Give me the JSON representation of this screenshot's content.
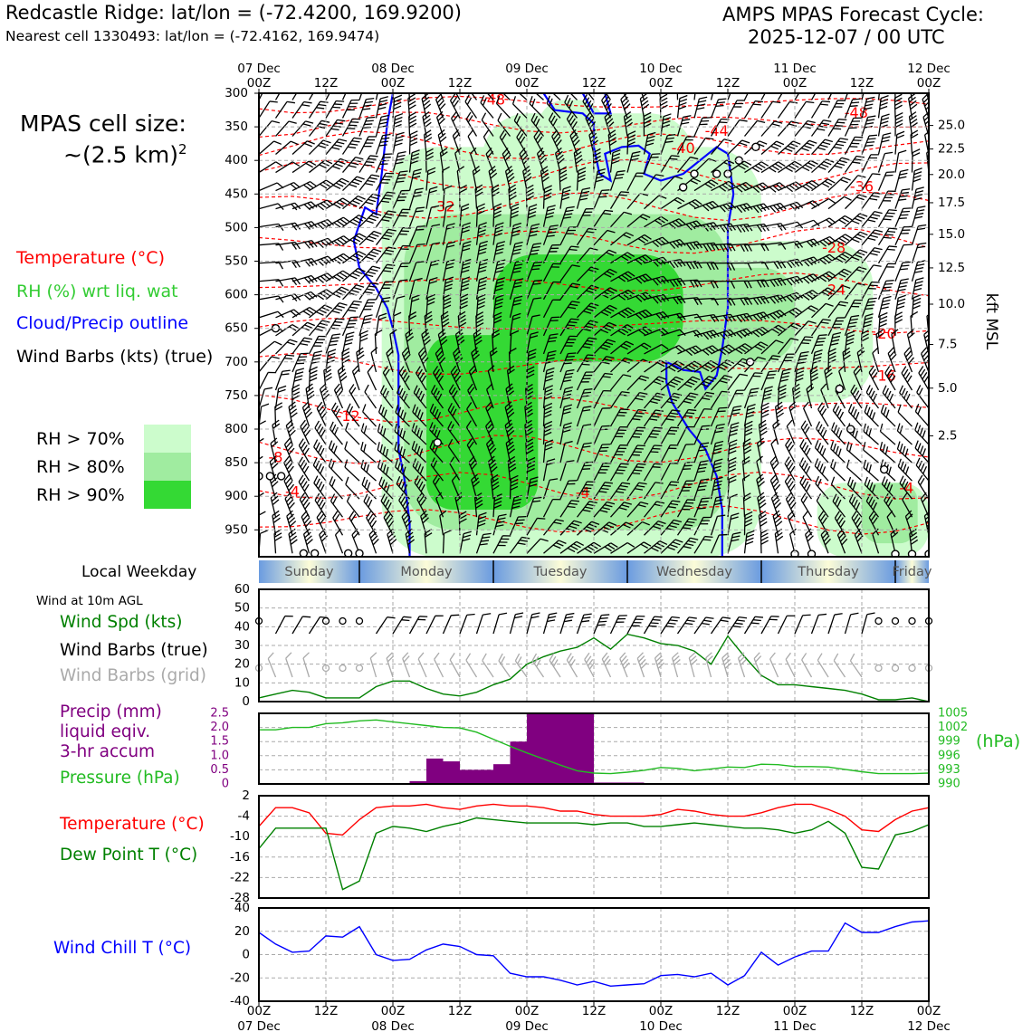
{
  "header": {
    "station": "Redcastle Ridge: lat/lon = (-72.4200, 169.9200)",
    "nearest_cell": "Nearest cell 1330493: lat/lon = (-72.4162, 169.9474)",
    "cycle_line1": "AMPS MPAS Forecast Cycle:",
    "cycle_line2": "2025-12-07 / 00 UTC"
  },
  "legend": {
    "cell_size_label": "MPAS cell size:",
    "cell_size_value": "~(2.5 km)",
    "cell_size_exp": "2",
    "temperature": "Temperature (°C)",
    "rh": "RH (%) wrt liq. wat",
    "cloud": "Cloud/Precip outline",
    "wind_barbs": "Wind Barbs (kts) (true)",
    "rh_levels": [
      {
        "label": "RH > 70%",
        "color": "#ccfccc"
      },
      {
        "label": "RH > 80%",
        "color": "#a0eca0"
      },
      {
        "label": "RH > 90%",
        "color": "#34d934"
      }
    ]
  },
  "colors": {
    "temperature": "#ff0000",
    "rh_text": "#33cc33",
    "cloud": "#0000ff",
    "wind_speed": "#008000",
    "grid_barbs": "#aaaaaa",
    "precip": "#800080",
    "pressure": "#22bb22",
    "dewpoint": "#008000",
    "wind_chill": "#0000ff",
    "weekday_light": "#fcfcd8",
    "weekday_dark": "#6a9be0"
  },
  "weekday": {
    "title": "Local Weekday",
    "days": [
      "Sunday",
      "Monday",
      "Tuesday",
      "Wednesday",
      "Thursday",
      "Friday"
    ]
  },
  "panels": {
    "wind10m_title": "Wind at 10m AGL",
    "wind_spd_label": "Wind Spd (kts)",
    "wind_barbs_true": "Wind Barbs (true)",
    "wind_barbs_grid": "Wind Barbs (grid)",
    "precip_line1": "Precip (mm)",
    "precip_line2": "liquid eqiv.",
    "precip_line3": "3-hr accum",
    "pressure_label": "Pressure (hPa)",
    "pressure_unit": "(hPa)",
    "temp_label": "Temperature (°C)",
    "dew_label": "Dew Point T (°C)",
    "windchill_label": "Wind Chill T (°C)",
    "kft_label": "kft MSL"
  },
  "chart_data": [
    {
      "type": "heatmap",
      "panel": "cross_section",
      "x_top_labels": [
        "07 Dec\n00Z",
        "12Z",
        "08 Dec\n00Z",
        "12Z",
        "09 Dec\n00Z",
        "12Z",
        "10 Dec\n00Z",
        "12Z",
        "11 Dec\n00Z",
        "12Z",
        "12 Dec\n00Z"
      ],
      "x_hours": [
        0,
        12,
        24,
        36,
        48,
        60,
        72,
        84,
        96,
        108,
        120
      ],
      "y_pressure_ticks": [
        300,
        350,
        400,
        450,
        500,
        550,
        600,
        650,
        700,
        750,
        800,
        850,
        900,
        950
      ],
      "ylim_hpa": [
        990,
        300
      ],
      "y_kft_ticks": [
        {
          "label": "25.0",
          "p": 348
        },
        {
          "label": "22.5",
          "p": 383
        },
        {
          "label": "20.0",
          "p": 421
        },
        {
          "label": "17.5",
          "p": 463
        },
        {
          "label": "15.0",
          "p": 510
        },
        {
          "label": "12.5",
          "p": 560
        },
        {
          "label": "10.0",
          "p": 614
        },
        {
          "label": "7.5",
          "p": 674
        },
        {
          "label": "5.0",
          "p": 739
        },
        {
          "label": "2.5",
          "p": 810
        }
      ],
      "temperature_contour_labels": [
        {
          "text": "-48",
          "h": 42,
          "p": 311
        },
        {
          "text": "-48",
          "h": 107,
          "p": 330
        },
        {
          "text": "-44",
          "h": 82,
          "p": 357
        },
        {
          "text": "-40",
          "h": 76,
          "p": 383
        },
        {
          "text": "-36",
          "h": 108,
          "p": 440
        },
        {
          "text": "-32",
          "h": 33,
          "p": 470
        },
        {
          "text": "-28",
          "h": 103,
          "p": 531
        },
        {
          "text": "-24",
          "h": 103,
          "p": 594
        },
        {
          "text": "-20",
          "h": 112,
          "p": 659
        },
        {
          "text": "-16",
          "h": 112,
          "p": 722
        },
        {
          "text": "-12",
          "h": 16,
          "p": 782
        },
        {
          "text": "-8",
          "h": 3,
          "p": 843
        },
        {
          "text": "-4",
          "h": 6,
          "p": 894
        },
        {
          "text": "-4",
          "h": 58,
          "p": 896
        },
        {
          "text": "-4",
          "h": 116,
          "p": 889
        }
      ],
      "rh_regions_approx": [
        {
          "level": ">90%",
          "h_range": [
            30,
            80
          ],
          "p_range": [
            540,
            880
          ]
        },
        {
          "level": ">80%",
          "h_range": [
            26,
            82
          ],
          "p_range": [
            480,
            940
          ]
        },
        {
          "level": ">70%",
          "h_range": [
            20,
            118
          ],
          "p_range": [
            340,
            990
          ]
        }
      ]
    },
    {
      "type": "line",
      "panel": "wind_10m",
      "xlim": [
        0,
        120
      ],
      "ylim": [
        0,
        60
      ],
      "yticks": [
        0,
        10,
        20,
        30,
        40,
        50,
        60
      ],
      "series": [
        {
          "name": "Wind Spd (kts)",
          "x": [
            0,
            3,
            6,
            9,
            12,
            15,
            18,
            21,
            24,
            27,
            30,
            33,
            36,
            39,
            42,
            45,
            48,
            51,
            54,
            57,
            60,
            63,
            66,
            69,
            72,
            75,
            78,
            81,
            84,
            87,
            90,
            93,
            96,
            99,
            102,
            105,
            108,
            111,
            114,
            117,
            120
          ],
          "y": [
            2,
            4,
            6,
            5,
            2,
            2,
            2,
            8,
            11,
            11,
            7,
            4,
            3,
            5,
            9,
            12,
            20,
            24,
            27,
            29,
            34,
            28,
            36,
            34,
            31,
            30,
            27,
            20,
            35,
            24,
            14,
            9,
            9,
            8,
            7,
            6,
            4,
            1,
            1,
            2,
            0
          ]
        }
      ]
    },
    {
      "type": "bar",
      "panel": "precip",
      "ylim": [
        0,
        2.5
      ],
      "yticks": [
        0,
        0.5,
        1.0,
        1.5,
        2.0,
        2.5
      ],
      "x_start_hours": [
        27,
        30,
        33,
        36,
        39,
        42,
        45,
        48,
        51,
        54,
        57,
        60,
        63,
        66
      ],
      "values": [
        0.1,
        0.9,
        0.8,
        0.5,
        0.5,
        0.7,
        1.5,
        2.5,
        2.5,
        2.5,
        2.5,
        0.05,
        0.05,
        0.05
      ],
      "bar_width_hours": 3
    },
    {
      "type": "line",
      "panel": "pressure",
      "ylim": [
        990,
        1005
      ],
      "yticks": [
        990,
        993,
        996,
        999,
        1002,
        1005
      ],
      "series": [
        {
          "name": "Pressure (hPa)",
          "x": [
            0,
            3,
            6,
            9,
            12,
            15,
            18,
            21,
            24,
            27,
            30,
            33,
            36,
            39,
            42,
            45,
            48,
            51,
            54,
            57,
            60,
            63,
            66,
            69,
            72,
            75,
            78,
            81,
            84,
            87,
            90,
            93,
            96,
            99,
            102,
            105,
            108,
            111,
            114,
            117,
            120
          ],
          "y": [
            1001.5,
            1001.5,
            1002,
            1002,
            1002.8,
            1003,
            1003.4,
            1003.6,
            1003.2,
            1002.8,
            1002.4,
            1002,
            1001.9,
            1001,
            999.5,
            998,
            996.6,
            995.3,
            994,
            992.8,
            992.3,
            992.2,
            992.5,
            992.9,
            993.5,
            993.3,
            992.8,
            993.2,
            993.6,
            993.5,
            994.2,
            994.1,
            993.7,
            993.7,
            993.6,
            993.1,
            992.6,
            992.2,
            992.2,
            992.2,
            992.3
          ]
        }
      ]
    },
    {
      "type": "line",
      "panel": "temperature",
      "ylim": [
        -28,
        2
      ],
      "yticks": [
        2,
        -4,
        -10,
        -16,
        -22,
        -28
      ],
      "series": [
        {
          "name": "Temperature (°C)",
          "x": [
            0,
            3,
            6,
            9,
            12,
            15,
            18,
            21,
            24,
            27,
            30,
            33,
            36,
            39,
            42,
            45,
            48,
            51,
            54,
            57,
            60,
            63,
            66,
            69,
            72,
            75,
            78,
            81,
            84,
            87,
            90,
            93,
            96,
            99,
            102,
            105,
            108,
            111,
            114,
            117,
            120
          ],
          "y": [
            -7,
            -1.5,
            -1.5,
            -3,
            -9,
            -9.5,
            -5,
            -1.5,
            -1,
            -1,
            -0.5,
            -1.5,
            -2,
            -1,
            -0.5,
            -1,
            -1,
            -1.5,
            -2.5,
            -2.5,
            -3.5,
            -4,
            -4,
            -4,
            -3.5,
            -2,
            -2.5,
            -3.5,
            -4,
            -4,
            -3,
            -1.5,
            -0.5,
            -0.5,
            -2,
            -4,
            -8,
            -8.5,
            -5,
            -2.5,
            -1.5
          ]
        },
        {
          "name": "Dew Point T (°C)",
          "x": [
            0,
            3,
            6,
            9,
            12,
            15,
            18,
            21,
            24,
            27,
            30,
            33,
            36,
            39,
            42,
            45,
            48,
            51,
            54,
            57,
            60,
            63,
            66,
            69,
            72,
            75,
            78,
            81,
            84,
            87,
            90,
            93,
            96,
            99,
            102,
            105,
            108,
            111,
            114,
            117,
            120
          ],
          "y": [
            -13.5,
            -7.5,
            -7.5,
            -7.5,
            -7.5,
            -25.5,
            -23,
            -9,
            -7,
            -7.5,
            -8.5,
            -7,
            -6,
            -4.5,
            -5,
            -5.5,
            -6,
            -6,
            -6,
            -6,
            -6.5,
            -6,
            -6,
            -7,
            -7,
            -6.5,
            -6,
            -6.5,
            -7,
            -7.5,
            -7.5,
            -8,
            -9,
            -8,
            -5.5,
            -9,
            -19,
            -19.5,
            -9.5,
            -8.5,
            -6.5
          ]
        }
      ]
    },
    {
      "type": "line",
      "panel": "wind_chill",
      "ylim": [
        -40,
        40
      ],
      "yticks": [
        40,
        20,
        0,
        -20,
        -40
      ],
      "series": [
        {
          "name": "Wind Chill T (°C)",
          "x": [
            0,
            3,
            6,
            9,
            12,
            15,
            18,
            21,
            24,
            27,
            30,
            33,
            36,
            39,
            42,
            45,
            48,
            51,
            54,
            57,
            60,
            63,
            66,
            69,
            72,
            75,
            78,
            81,
            84,
            87,
            90,
            93,
            96,
            99,
            102,
            105,
            108,
            111,
            114,
            117,
            120
          ],
          "y": [
            19,
            9,
            2,
            3,
            16,
            15,
            24,
            0,
            -5,
            -4,
            4,
            9,
            7,
            0,
            -1,
            -16,
            -19,
            -19,
            -22,
            -26,
            -23,
            -27,
            -26,
            -25,
            -18,
            -17,
            -19,
            -16,
            -26,
            -18,
            2,
            -9,
            -2,
            3,
            3,
            27,
            19,
            19,
            24,
            28,
            29
          ]
        }
      ]
    }
  ],
  "bottom_axis": {
    "labels": [
      "00Z\n07 Dec",
      "12Z",
      "00Z\n08 Dec",
      "12Z",
      "00Z\n09 Dec",
      "12Z",
      "00Z\n10 Dec",
      "12Z",
      "00Z\n11 Dec",
      "12Z",
      "00Z\n12 Dec"
    ]
  }
}
